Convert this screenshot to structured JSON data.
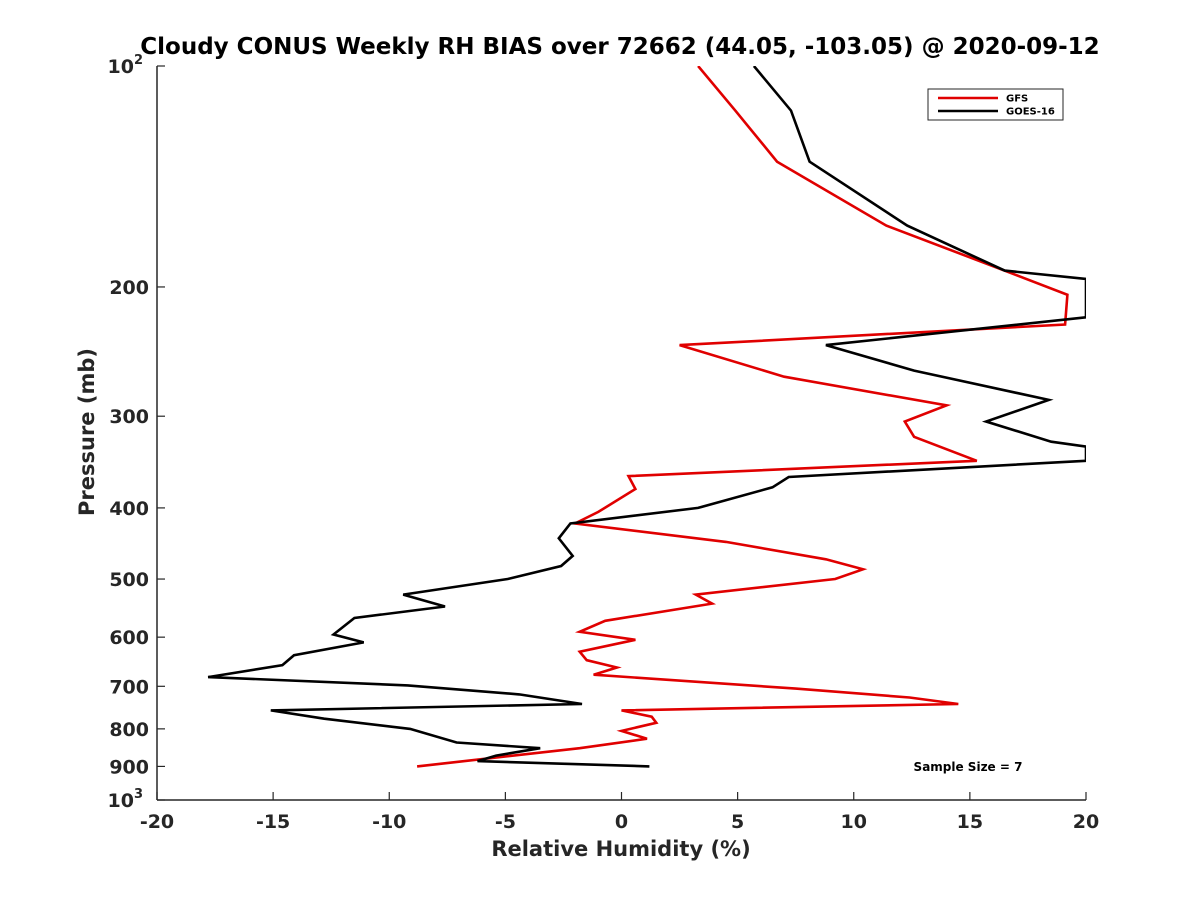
{
  "chart_data": {
    "type": "line",
    "title": "Cloudy CONUS Weekly RH BIAS over 72662 (44.05, -103.05) @ 2020-09-12",
    "xlabel": "Relative Humidity (%)",
    "ylabel": "Pressure (mb)",
    "xlim": [
      -20,
      20
    ],
    "ylim": [
      100,
      1000
    ],
    "y_scale": "log",
    "y_reversed": true,
    "grid": false,
    "legend_position": "top-right",
    "x_ticks": [
      "-20",
      "-15",
      "-10",
      "-5",
      "0",
      "5",
      "10",
      "15",
      "20"
    ],
    "y_ticks": [
      {
        "value": 100,
        "label": "10",
        "sup": "2"
      },
      {
        "value": 200,
        "label": "200",
        "sup": ""
      },
      {
        "value": 300,
        "label": "300",
        "sup": ""
      },
      {
        "value": 400,
        "label": "400",
        "sup": ""
      },
      {
        "value": 500,
        "label": "500",
        "sup": ""
      },
      {
        "value": 600,
        "label": "600",
        "sup": ""
      },
      {
        "value": 700,
        "label": "700",
        "sup": ""
      },
      {
        "value": 800,
        "label": "800",
        "sup": ""
      },
      {
        "value": 900,
        "label": "900",
        "sup": ""
      },
      {
        "value": 1000,
        "label": "10",
        "sup": "3"
      }
    ],
    "series": [
      {
        "name": "GFS",
        "color": "#e00000",
        "points": [
          [
            3.3,
            100
          ],
          [
            4.9,
            115
          ],
          [
            6.7,
            135
          ],
          [
            11.4,
            165
          ],
          [
            16.5,
            190
          ],
          [
            19.2,
            205
          ],
          [
            19.1,
            225
          ],
          [
            2.5,
            240
          ],
          [
            7.0,
            265
          ],
          [
            14.0,
            290
          ],
          [
            12.2,
            305
          ],
          [
            12.6,
            320
          ],
          [
            15.3,
            345
          ],
          [
            0.3,
            362
          ],
          [
            0.6,
            377
          ],
          [
            -1.0,
            405
          ],
          [
            -2.0,
            420
          ],
          [
            4.5,
            445
          ],
          [
            8.8,
            470
          ],
          [
            10.4,
            485
          ],
          [
            9.2,
            500
          ],
          [
            3.2,
            525
          ],
          [
            3.9,
            540
          ],
          [
            -0.7,
            570
          ],
          [
            -1.8,
            590
          ],
          [
            0.6,
            605
          ],
          [
            -1.8,
            628
          ],
          [
            -1.5,
            645
          ],
          [
            -0.2,
            660
          ],
          [
            -1.2,
            675
          ],
          [
            7.5,
            705
          ],
          [
            12.4,
            725
          ],
          [
            14.5,
            740
          ],
          [
            0.0,
            755
          ],
          [
            1.3,
            770
          ],
          [
            1.5,
            785
          ],
          [
            0.0,
            805
          ],
          [
            1.1,
            825
          ],
          [
            -1.8,
            850
          ],
          [
            -8.8,
            900
          ]
        ]
      },
      {
        "name": "GOES-16",
        "color": "#000000",
        "points": [
          [
            5.7,
            100
          ],
          [
            7.3,
            115
          ],
          [
            8.1,
            135
          ],
          [
            12.3,
            165
          ],
          [
            16.5,
            190
          ],
          [
            20.0,
            195
          ],
          [
            20.0,
            220
          ],
          [
            8.8,
            240
          ],
          [
            12.6,
            260
          ],
          [
            18.4,
            285
          ],
          [
            15.7,
            305
          ],
          [
            18.5,
            325
          ],
          [
            20.0,
            330
          ],
          [
            20.0,
            345
          ],
          [
            7.2,
            363
          ],
          [
            6.5,
            375
          ],
          [
            3.3,
            400
          ],
          [
            -2.2,
            420
          ],
          [
            -2.7,
            440
          ],
          [
            -2.1,
            465
          ],
          [
            -2.6,
            480
          ],
          [
            -4.9,
            500
          ],
          [
            -9.4,
            525
          ],
          [
            -7.6,
            545
          ],
          [
            -11.5,
            565
          ],
          [
            -12.4,
            595
          ],
          [
            -11.1,
            610
          ],
          [
            -14.1,
            635
          ],
          [
            -14.6,
            655
          ],
          [
            -17.8,
            680
          ],
          [
            -9.2,
            698
          ],
          [
            -4.4,
            718
          ],
          [
            -1.7,
            740
          ],
          [
            -15.1,
            755
          ],
          [
            -12.8,
            775
          ],
          [
            -9.1,
            800
          ],
          [
            -7.1,
            835
          ],
          [
            -3.5,
            850
          ],
          [
            -5.4,
            870
          ],
          [
            -6.2,
            885
          ],
          [
            1.2,
            900
          ]
        ]
      }
    ],
    "annotation": "Sample Size = 7"
  }
}
